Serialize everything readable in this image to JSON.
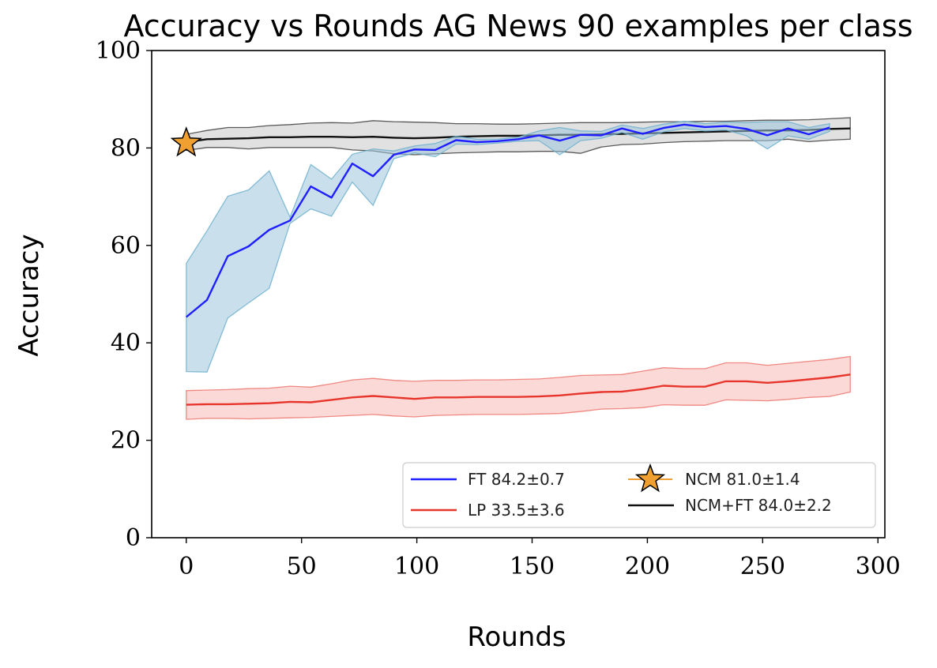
{
  "chart_data": {
    "type": "line",
    "title": "Accuracy vs Rounds AG News 90 examples per class",
    "xlabel": "Rounds",
    "ylabel": "Accuracy",
    "xlim": [
      -15,
      303
    ],
    "ylim": [
      0,
      100
    ],
    "xticks": [
      0,
      50,
      100,
      150,
      200,
      250,
      300
    ],
    "yticks": [
      0,
      20,
      40,
      60,
      80,
      100
    ],
    "grid": false,
    "legend_position": "lower-right",
    "series": [
      {
        "name": "FT 84.2±0.7",
        "kind": "line",
        "color": "#1f1fff",
        "band_color": "#9cc7dd",
        "band_edge": "#6aaecc",
        "x": [
          0,
          9,
          18,
          27,
          36,
          45,
          54,
          63,
          72,
          81,
          90,
          99,
          108,
          117,
          126,
          135,
          144,
          153,
          162,
          171,
          180,
          189,
          198,
          207,
          216,
          225,
          234,
          243,
          252,
          261,
          270,
          279
        ],
        "y": [
          45.3,
          48.8,
          57.8,
          59.8,
          63.2,
          65.1,
          72.1,
          69.8,
          76.8,
          74.2,
          78.6,
          79.7,
          79.6,
          81.6,
          81.2,
          81.4,
          81.8,
          82.6,
          81.5,
          82.7,
          82.6,
          84.0,
          82.9,
          84.1,
          84.8,
          84.3,
          84.5,
          83.9,
          82.6,
          84.0,
          82.8,
          84.2
        ],
        "lower": [
          34.1,
          34.0,
          45.1,
          48.2,
          51.2,
          64.5,
          67.5,
          66.0,
          73.0,
          68.2,
          77.8,
          79.0,
          78.2,
          80.8,
          80.7,
          81.0,
          81.4,
          81.5,
          78.6,
          81.5,
          82.0,
          83.2,
          81.8,
          83.3,
          84.0,
          83.5,
          83.7,
          82.5,
          79.8,
          82.5,
          81.8,
          83.4
        ],
        "upper": [
          56.3,
          63.0,
          70.1,
          71.4,
          75.3,
          65.8,
          76.6,
          73.6,
          78.7,
          79.8,
          79.4,
          80.4,
          80.9,
          82.4,
          81.8,
          81.8,
          82.2,
          83.5,
          84.2,
          83.5,
          83.4,
          84.7,
          84.0,
          84.9,
          85.5,
          85.0,
          85.3,
          85.2,
          85.4,
          85.4,
          84.2,
          85.0
        ]
      },
      {
        "name": "LP 33.5±3.6",
        "kind": "line",
        "color": "#e8352c",
        "band_color": "#f6b9b6",
        "band_edge": "#ec6f68",
        "x": [
          0,
          9,
          18,
          27,
          36,
          45,
          54,
          63,
          72,
          81,
          90,
          99,
          108,
          117,
          126,
          135,
          144,
          153,
          162,
          171,
          180,
          189,
          198,
          207,
          216,
          225,
          234,
          243,
          252,
          261,
          270,
          279,
          288
        ],
        "y": [
          27.3,
          27.4,
          27.4,
          27.5,
          27.6,
          27.9,
          27.8,
          28.3,
          28.8,
          29.1,
          28.8,
          28.5,
          28.8,
          28.8,
          28.9,
          28.9,
          28.9,
          29.0,
          29.2,
          29.6,
          29.9,
          30.0,
          30.5,
          31.2,
          31.0,
          31.0,
          32.1,
          32.1,
          31.8,
          32.1,
          32.5,
          32.9,
          33.5
        ],
        "lower": [
          24.3,
          24.5,
          24.5,
          24.4,
          24.5,
          24.6,
          24.7,
          24.9,
          25.1,
          25.3,
          25.0,
          24.8,
          25.1,
          25.2,
          25.3,
          25.3,
          25.3,
          25.4,
          25.5,
          25.9,
          26.4,
          26.5,
          26.7,
          27.3,
          27.2,
          27.2,
          28.3,
          28.2,
          28.1,
          28.4,
          28.8,
          29.0,
          29.9
        ],
        "upper": [
          30.2,
          30.3,
          30.4,
          30.6,
          30.7,
          31.1,
          30.9,
          31.6,
          32.4,
          32.7,
          32.3,
          32.1,
          32.3,
          32.3,
          32.4,
          32.4,
          32.5,
          32.6,
          32.9,
          33.3,
          33.4,
          33.5,
          34.2,
          34.9,
          34.7,
          34.7,
          35.9,
          35.9,
          35.4,
          35.8,
          36.2,
          36.6,
          37.2
        ]
      },
      {
        "name": "NCM 81.0±1.4",
        "kind": "marker",
        "color": "#f0a030",
        "x": [
          0
        ],
        "y": [
          81.0
        ]
      },
      {
        "name": "NCM+FT 84.0±2.2",
        "kind": "line",
        "color": "#111111",
        "band_color": "#c8c8c8",
        "band_edge": "#333333",
        "x": [
          0,
          9,
          18,
          27,
          36,
          45,
          54,
          63,
          72,
          81,
          90,
          99,
          108,
          117,
          126,
          135,
          144,
          153,
          162,
          171,
          180,
          189,
          198,
          207,
          216,
          225,
          234,
          243,
          252,
          261,
          270,
          279,
          288
        ],
        "y": [
          81.2,
          81.8,
          81.9,
          82.0,
          82.2,
          82.2,
          82.3,
          82.3,
          82.2,
          82.3,
          82.1,
          82.0,
          82.1,
          82.3,
          82.4,
          82.5,
          82.5,
          82.6,
          82.7,
          82.7,
          82.8,
          82.9,
          83.0,
          83.1,
          83.2,
          83.3,
          83.4,
          83.5,
          83.6,
          83.6,
          83.7,
          83.9,
          84.0
        ],
        "lower": [
          79.5,
          80.1,
          80.1,
          79.8,
          80.1,
          80.1,
          80.1,
          80.1,
          79.6,
          79.4,
          78.8,
          78.6,
          78.8,
          79.0,
          79.1,
          79.2,
          79.2,
          79.3,
          79.3,
          78.9,
          80.2,
          80.7,
          80.8,
          81.1,
          81.3,
          81.4,
          81.5,
          81.5,
          81.5,
          81.8,
          81.3,
          81.6,
          81.8
        ],
        "upper": [
          82.8,
          83.6,
          84.2,
          84.2,
          84.6,
          84.8,
          85.1,
          85.2,
          85.1,
          85.6,
          85.4,
          85.3,
          85.2,
          85.0,
          85.0,
          84.9,
          84.9,
          85.0,
          85.1,
          85.2,
          85.2,
          85.2,
          85.3,
          85.4,
          85.4,
          85.5,
          85.5,
          85.6,
          85.7,
          85.7,
          85.8,
          86.0,
          86.2
        ]
      }
    ]
  }
}
